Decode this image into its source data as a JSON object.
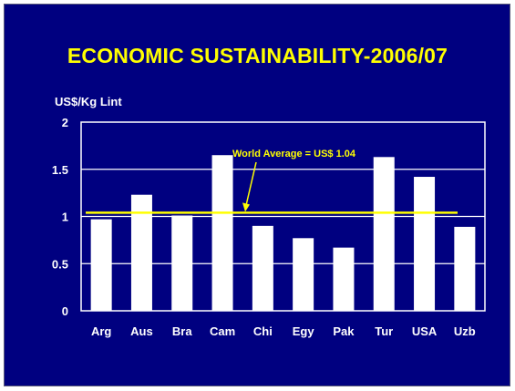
{
  "slide": {
    "background": "#000080"
  },
  "chart_data": {
    "type": "bar",
    "title": "ECONOMIC SUSTAINABILITY-2006/07",
    "ylabel": "US$/Kg Lint",
    "xlabel": "",
    "categories": [
      "Arg",
      "Aus",
      "Bra",
      "Cam",
      "Chi",
      "Egy",
      "Pak",
      "Tur",
      "USA",
      "Uzb"
    ],
    "values": [
      0.97,
      1.23,
      1.01,
      1.65,
      0.9,
      0.77,
      0.67,
      1.63,
      1.42,
      0.89
    ],
    "ylim": [
      0,
      2
    ],
    "yticks": [
      "0",
      "0.5",
      "1",
      "1.5",
      "2"
    ],
    "grid": true,
    "reference_line": {
      "value": 1.04,
      "label": "World Average = US$ 1.04",
      "color": "#ffff00"
    },
    "bar_color": "#ffffff",
    "text_color": "#ffffff",
    "title_color": "#ffff00"
  }
}
